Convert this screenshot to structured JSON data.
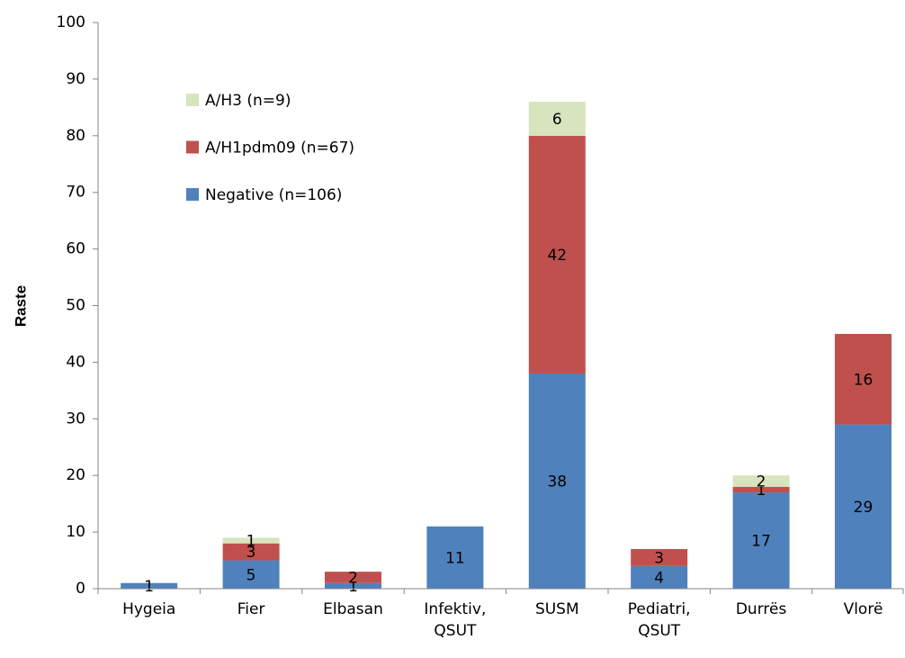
{
  "chart_data": {
    "type": "stacked_bar",
    "y_label": "Raste",
    "categories": [
      "Hygeia",
      "Fier",
      "Elbasan",
      "Infektiv, QSUT",
      "SUSM",
      "Pediatri, QSUT",
      "Durrës",
      "Vlorë"
    ],
    "series": [
      {
        "name": "Negative (n=106)",
        "color": "#4f81bd",
        "values": [
          1,
          5,
          1,
          11,
          38,
          4,
          17,
          29
        ]
      },
      {
        "name": "A/H1pdm09 (n=67)",
        "color": "#c0504d",
        "values": [
          0,
          3,
          2,
          0,
          42,
          3,
          1,
          16
        ]
      },
      {
        "name": "A/H3 (n=9)",
        "color": "#d7e4bd",
        "values": [
          0,
          1,
          0,
          0,
          6,
          0,
          2,
          0
        ]
      }
    ],
    "ylim": [
      0,
      100
    ],
    "yticks": [
      0,
      10,
      20,
      30,
      40,
      50,
      60,
      70,
      80,
      90,
      100
    ],
    "grid": false,
    "legend": "upper left"
  }
}
